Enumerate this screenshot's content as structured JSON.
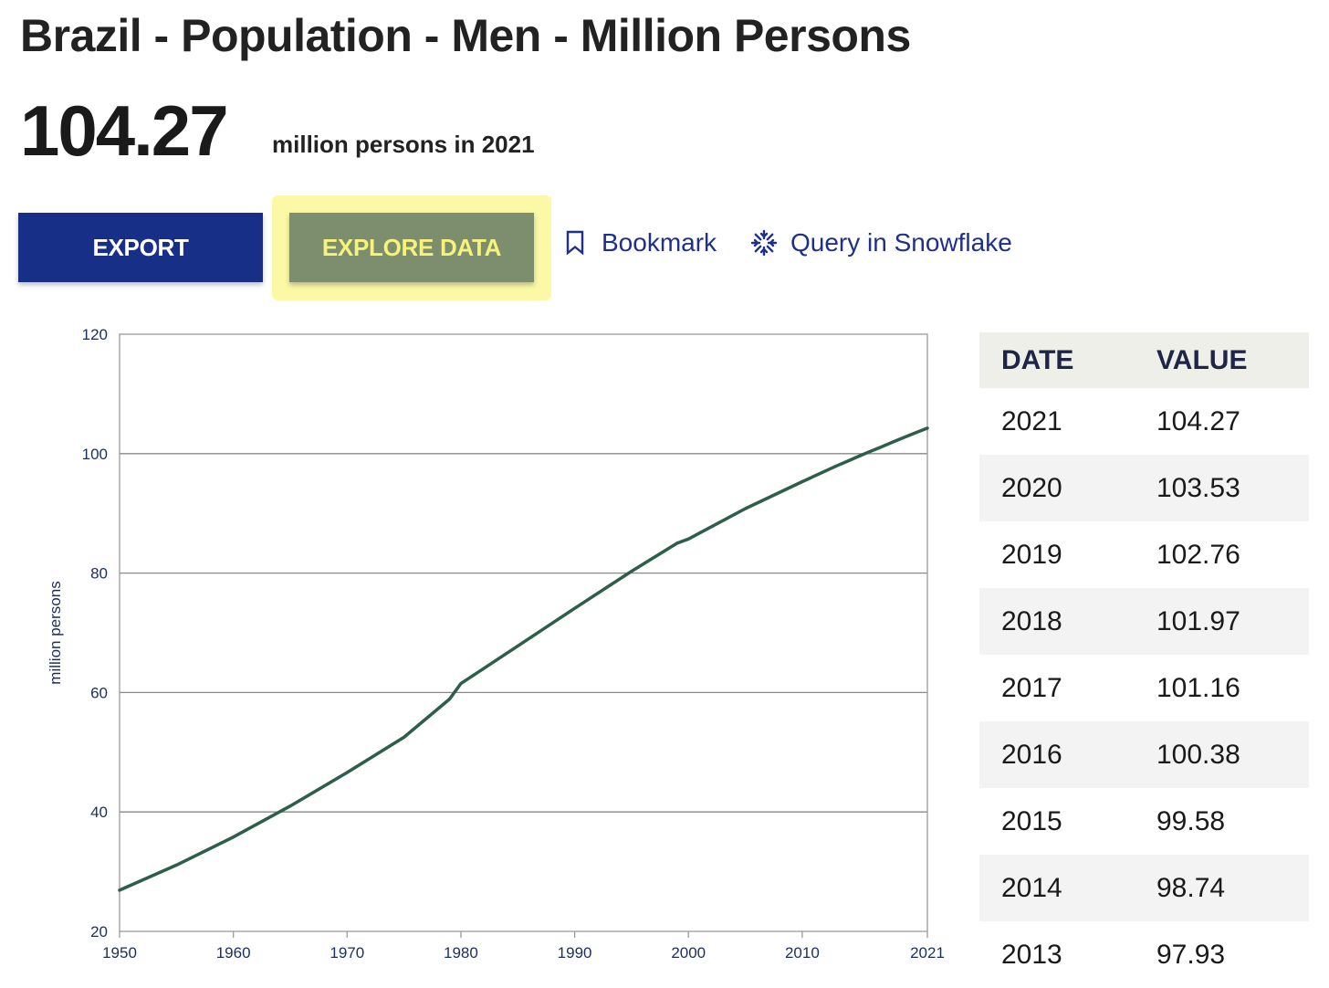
{
  "page": {
    "title": "Brazil - Population - Men - Million Persons",
    "headline_value": "104.27",
    "headline_caption": "million persons in 2021"
  },
  "actions": {
    "export_label": "EXPORT",
    "explore_label": "EXPLORE DATA",
    "bookmark_label": "Bookmark",
    "snowflake_label": "Query in Snowflake"
  },
  "colors": {
    "export_bg": "#182f88",
    "explore_bg": "#7c8e6d",
    "explore_text": "#f6f27a",
    "highlight": "#fbf9a6",
    "link": "#1f2f8c",
    "line": "#2d5e4a"
  },
  "icons": {
    "bookmark": "bookmark-icon",
    "snowflake": "snowflake-icon"
  },
  "chart_data": {
    "type": "line",
    "title": "",
    "xlabel": "",
    "ylabel": "million persons",
    "xlim": [
      1950,
      2021
    ],
    "ylim": [
      20,
      120
    ],
    "x_ticks": [
      "1950",
      "1960",
      "1970",
      "1980",
      "1990",
      "2000",
      "2010",
      "2021"
    ],
    "y_ticks": [
      "20",
      "40",
      "60",
      "80",
      "100",
      "120"
    ],
    "grid": "horizontal",
    "series": [
      {
        "points": [
          [
            1950,
            26.9
          ],
          [
            1955,
            31.1
          ],
          [
            1960,
            35.8
          ],
          [
            1965,
            41.0
          ],
          [
            1970,
            46.6
          ],
          [
            1975,
            52.5
          ],
          [
            1979,
            58.9
          ],
          [
            1980,
            61.5
          ],
          [
            1985,
            67.8
          ],
          [
            1990,
            74.1
          ],
          [
            1995,
            80.3
          ],
          [
            1999,
            85.0
          ],
          [
            2000,
            85.7
          ],
          [
            2005,
            90.8
          ],
          [
            2010,
            95.3
          ],
          [
            2013,
            97.93
          ],
          [
            2014,
            98.74
          ],
          [
            2015,
            99.58
          ],
          [
            2016,
            100.38
          ],
          [
            2017,
            101.16
          ],
          [
            2018,
            101.97
          ],
          [
            2019,
            102.76
          ],
          [
            2020,
            103.53
          ],
          [
            2021,
            104.27
          ]
        ]
      }
    ]
  },
  "table": {
    "headers": [
      "DATE",
      "VALUE"
    ],
    "rows": [
      [
        "2021",
        "104.27"
      ],
      [
        "2020",
        "103.53"
      ],
      [
        "2019",
        "102.76"
      ],
      [
        "2018",
        "101.97"
      ],
      [
        "2017",
        "101.16"
      ],
      [
        "2016",
        "100.38"
      ],
      [
        "2015",
        "99.58"
      ],
      [
        "2014",
        "98.74"
      ],
      [
        "2013",
        "97.93"
      ]
    ]
  }
}
